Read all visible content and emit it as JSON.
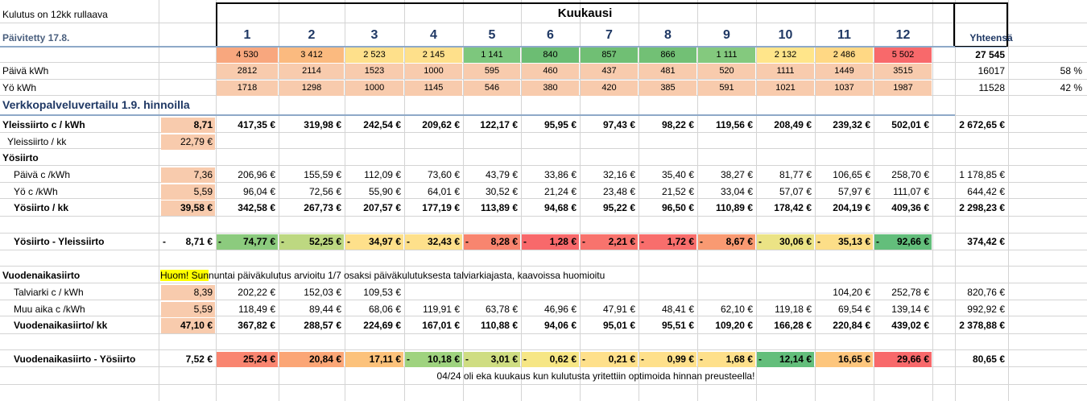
{
  "header": {
    "note1": "Kulutus on 12kk rullaava",
    "note2": "Päivitetty 17.8.",
    "title": "Kuukausi",
    "total_label": "Yhteensä",
    "months": [
      "1",
      "2",
      "3",
      "4",
      "5",
      "6",
      "7",
      "8",
      "9",
      "10",
      "11",
      "12"
    ]
  },
  "usage": {
    "total": [
      "4 530",
      "3 412",
      "2 523",
      "2 145",
      "1 141",
      "840",
      "857",
      "866",
      "1 111",
      "2 132",
      "2 486",
      "5 502"
    ],
    "total_sum": "27 545",
    "total_colors": [
      "#f8a77e",
      "#fbba7f",
      "#fee08b",
      "#fee08b",
      "#7dc77d",
      "#6cbd73",
      "#70bf74",
      "#72c075",
      "#84c97e",
      "#ffe58a",
      "#ffd884",
      "#f8696b"
    ],
    "day_label": "Päivä kWh",
    "day": [
      "2812",
      "2114",
      "1523",
      "1000",
      "595",
      "460",
      "437",
      "481",
      "520",
      "1111",
      "1449",
      "3515"
    ],
    "day_sum": "16017",
    "day_pct": "58 %",
    "night_label": "Yö kWh",
    "night": [
      "1718",
      "1298",
      "1000",
      "1145",
      "546",
      "380",
      "420",
      "385",
      "591",
      "1021",
      "1037",
      "1987"
    ],
    "night_sum": "11528",
    "night_pct": "42 %"
  },
  "section1": {
    "title": "Verkkopalveluvertailu 1.9. hinnoilla",
    "general": {
      "label": "Yleissiirto c / kWh",
      "rate": "8,71",
      "values": [
        "417,35 €",
        "319,98 €",
        "242,54 €",
        "209,62 €",
        "122,17 €",
        "95,95 €",
        "97,43 €",
        "98,22 €",
        "119,56 €",
        "208,49 €",
        "239,32 €",
        "502,01 €"
      ],
      "sum": "2 672,65 €"
    },
    "general_monthly": {
      "label": "Yleissiirto / kk",
      "rate": "22,79 €"
    },
    "time_title": "Yösiirto",
    "time_day": {
      "label": "Päivä c /kWh",
      "rate": "7,36",
      "values": [
        "206,96 €",
        "155,59 €",
        "112,09 €",
        "73,60 €",
        "43,79 €",
        "33,86 €",
        "32,16 €",
        "35,40 €",
        "38,27 €",
        "81,77 €",
        "106,65 €",
        "258,70 €"
      ],
      "sum": "1 178,85 €"
    },
    "time_night": {
      "label": "Yö c /kWh",
      "rate": "5,59",
      "values": [
        "96,04 €",
        "72,56 €",
        "55,90 €",
        "64,01 €",
        "30,52 €",
        "21,24 €",
        "23,48 €",
        "21,52 €",
        "33,04 €",
        "57,07 €",
        "57,97 €",
        "111,07 €"
      ],
      "sum": "644,42 €"
    },
    "time_monthly": {
      "label": "Yösiirto / kk",
      "rate": "39,58 €",
      "values": [
        "342,58 €",
        "267,73 €",
        "207,57 €",
        "177,19 €",
        "113,89 €",
        "94,68 €",
        "95,22 €",
        "96,50 €",
        "110,89 €",
        "178,42 €",
        "204,19 €",
        "409,36 €"
      ],
      "sum": "2 298,23 €"
    },
    "diff": {
      "label": "Yösiirto - Yleissiirto",
      "rate": "8,71 €",
      "sign": "-",
      "values": [
        "74,77 €",
        "52,25 €",
        "34,97 €",
        "32,43 €",
        "8,28 €",
        "1,28 €",
        "2,21 €",
        "1,72 €",
        "8,67 €",
        "30,06 €",
        "35,13 €",
        "92,66 €"
      ],
      "colors": [
        "#8ccb7e",
        "#bdd881",
        "#fee08b",
        "#fee08b",
        "#f8856f",
        "#f8696b",
        "#f8736d",
        "#f86e6c",
        "#f99a72",
        "#ebe385",
        "#fcde88",
        "#63be7b"
      ],
      "sum": "374,42 €"
    }
  },
  "section2": {
    "title": "Vuodenaikasiirto",
    "note_highlight": "Huom! Sun",
    "note_rest": "nuntai päiväkulutus arvioitu 1/7 osaksi päiväkulutuksesta talviarkiajasta, kaavoissa huomioitu",
    "winter": {
      "label": "Talviarki c / kWh",
      "rate": "8,39",
      "values": [
        "202,22 €",
        "152,03 €",
        "109,53 €",
        "",
        "",
        "",
        "",
        "",
        "",
        "",
        "104,20 €",
        "252,78 €"
      ],
      "sum": "820,76 €"
    },
    "other": {
      "label": "Muu aika c /kWh",
      "rate": "5,59",
      "values": [
        "118,49 €",
        "89,44 €",
        "68,06 €",
        "119,91 €",
        "63,78 €",
        "46,96 €",
        "47,91 €",
        "48,41 €",
        "62,10 €",
        "119,18 €",
        "69,54 €",
        "139,14 €"
      ],
      "sum": "992,92 €"
    },
    "monthly": {
      "label": "Vuodenaikasiirto/ kk",
      "rate": "47,10 €",
      "values": [
        "367,82 €",
        "288,57 €",
        "224,69 €",
        "167,01 €",
        "110,88 €",
        "94,06 €",
        "95,01 €",
        "95,51 €",
        "109,20 €",
        "166,28 €",
        "220,84 €",
        "439,02 €"
      ],
      "sum": "2 378,88 €"
    },
    "diff": {
      "label": "Vuodenaikasiirto - Yösiirto",
      "rate": "7,52 €",
      "signs": [
        "",
        "",
        "",
        "-",
        "-",
        "-",
        "-",
        "-",
        "-",
        "-",
        "",
        ""
      ],
      "values": [
        "25,24 €",
        "20,84 €",
        "17,11 €",
        "10,18 €",
        "3,01 €",
        "0,62 €",
        "0,21 €",
        "0,99 €",
        "1,68 €",
        "12,14 €",
        "16,65 €",
        "29,66 €"
      ],
      "colors": [
        "#f98570",
        "#fba676",
        "#fcc27b",
        "#9fd37f",
        "#cfdd82",
        "#f6e685",
        "#fee08b",
        "#fee08b",
        "#fee08b",
        "#63be7b",
        "#fdc67d",
        "#f8696b"
      ],
      "sum": "80,65 €"
    }
  },
  "footer_note": "04/24 oli eka kuukaus kun kulutusta yritettiin optimoida hinnan preusteella!",
  "colors": {
    "rate_fill": "#f8cbad",
    "highlight": "#ffff00",
    "header_blue": "#1f3864"
  }
}
